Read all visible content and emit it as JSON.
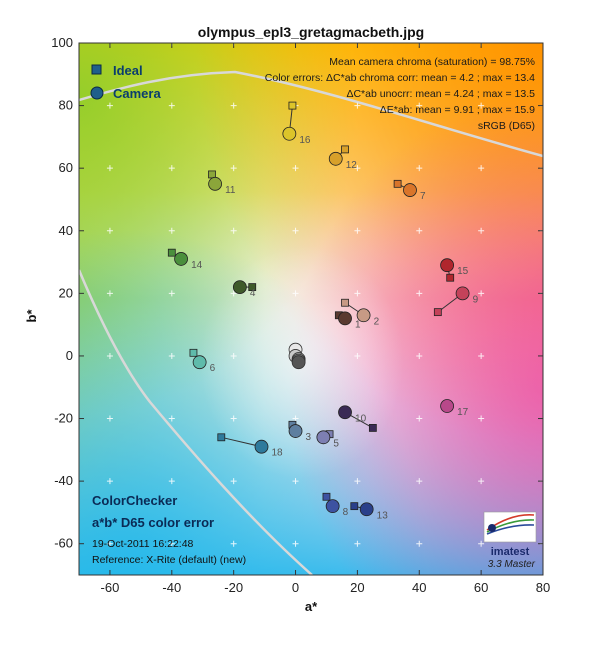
{
  "chart_data": {
    "type": "scatter",
    "title": "olympus_epl3_gretagmacbeth.jpg",
    "xlabel": "a*",
    "ylabel": "b*",
    "xlim": [
      -70,
      80
    ],
    "ylim": [
      -70,
      100
    ],
    "x_ticks": [
      "-60",
      "-40",
      "-20",
      "0",
      "20",
      "40",
      "60",
      "80"
    ],
    "y_ticks": [
      "-60",
      "-40",
      "-20",
      "0",
      "20",
      "40",
      "60",
      "80",
      "100"
    ],
    "grid": true,
    "legend": [
      {
        "label": "Ideal",
        "marker": "square",
        "color": "#1f5f8b"
      },
      {
        "label": "Camera",
        "marker": "circle",
        "color": "#1f5f8b"
      }
    ],
    "legend_position": "top-left",
    "stats": [
      "Mean camera chroma (saturation) = 98.75%",
      "Color errors: ΔC*ab chroma corr:  mean = 4.2 ;  max = 13.4",
      "ΔC*ab unocrr:  mean = 4.24 ;  max = 13.5",
      "ΔE*ab:  mean = 9.91 ;  max = 15.9",
      "sRGB (D65)"
    ],
    "info_title": [
      "ColorChecker",
      "a*b* D65 color error"
    ],
    "info_lines": [
      "19-Oct-2011 16:22:48",
      "Reference: X-Rite (default) (new)"
    ],
    "logo_text": "imatest",
    "version_text": "3.3  Master",
    "patches": [
      {
        "id": "1",
        "ideal": [
          14,
          13
        ],
        "camera": [
          16,
          12
        ],
        "color": "#5a3a30"
      },
      {
        "id": "2",
        "ideal": [
          16,
          17
        ],
        "camera": [
          22,
          13
        ],
        "color": "#c79a85"
      },
      {
        "id": "3",
        "ideal": [
          -1,
          -22
        ],
        "camera": [
          0,
          -24
        ],
        "color": "#5e7fa0"
      },
      {
        "id": "4",
        "ideal": [
          -14,
          22
        ],
        "camera": [
          -18,
          22
        ],
        "color": "#3f5a2a"
      },
      {
        "id": "5",
        "ideal": [
          11,
          -25
        ],
        "camera": [
          9,
          -26
        ],
        "color": "#7d7fb2"
      },
      {
        "id": "6",
        "ideal": [
          -33,
          1
        ],
        "camera": [
          -31,
          -2
        ],
        "color": "#5fbbab"
      },
      {
        "id": "7",
        "ideal": [
          33,
          55
        ],
        "camera": [
          37,
          53
        ],
        "color": "#d9752a"
      },
      {
        "id": "8",
        "ideal": [
          10,
          -45
        ],
        "camera": [
          12,
          -48
        ],
        "color": "#3d52a1"
      },
      {
        "id": "9",
        "ideal": [
          46,
          14
        ],
        "camera": [
          54,
          20
        ],
        "color": "#c4425a"
      },
      {
        "id": "10",
        "ideal": [
          25,
          -23
        ],
        "camera": [
          16,
          -18
        ],
        "color": "#3a2a55"
      },
      {
        "id": "11",
        "ideal": [
          -27,
          58
        ],
        "camera": [
          -26,
          55
        ],
        "color": "#8ba63a"
      },
      {
        "id": "12",
        "ideal": [
          16,
          66
        ],
        "camera": [
          13,
          63
        ],
        "color": "#d8a02a"
      },
      {
        "id": "13",
        "ideal": [
          19,
          -48
        ],
        "camera": [
          23,
          -49
        ],
        "color": "#2a3f8a"
      },
      {
        "id": "14",
        "ideal": [
          -40,
          33
        ],
        "camera": [
          -37,
          31
        ],
        "color": "#4a8f3c"
      },
      {
        "id": "15",
        "ideal": [
          50,
          25
        ],
        "camera": [
          49,
          29
        ],
        "color": "#b0262d"
      },
      {
        "id": "16",
        "ideal": [
          -1,
          80
        ],
        "camera": [
          -2,
          71
        ],
        "color": "#dcc42a"
      },
      {
        "id": "17",
        "ideal": [
          49,
          -16
        ],
        "camera": [
          49,
          -16
        ],
        "color": "#b8488a"
      },
      {
        "id": "18",
        "ideal": [
          -24,
          -26
        ],
        "camera": [
          -11,
          -29
        ],
        "color": "#2e7a9c"
      }
    ],
    "neutral_patches": [
      {
        "camera": [
          0,
          2
        ],
        "color": "#e8e8e8"
      },
      {
        "camera": [
          0,
          0
        ],
        "color": "#c8c8c8"
      },
      {
        "camera": [
          1,
          -1
        ],
        "color": "#a0a0a0"
      },
      {
        "camera": [
          1,
          -1.5
        ],
        "color": "#7a7a7a"
      },
      {
        "camera": [
          1,
          -2
        ],
        "color": "#555555"
      }
    ]
  }
}
